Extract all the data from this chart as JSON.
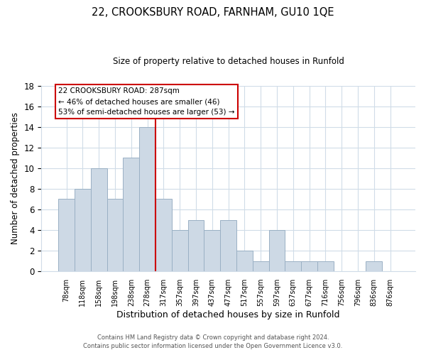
{
  "title": "22, CROOKSBURY ROAD, FARNHAM, GU10 1QE",
  "subtitle": "Size of property relative to detached houses in Runfold",
  "xlabel": "Distribution of detached houses by size in Runfold",
  "ylabel": "Number of detached properties",
  "bar_labels": [
    "78sqm",
    "118sqm",
    "158sqm",
    "198sqm",
    "238sqm",
    "278sqm",
    "317sqm",
    "357sqm",
    "397sqm",
    "437sqm",
    "477sqm",
    "517sqm",
    "557sqm",
    "597sqm",
    "637sqm",
    "677sqm",
    "716sqm",
    "756sqm",
    "796sqm",
    "836sqm",
    "876sqm"
  ],
  "bar_values": [
    7,
    8,
    10,
    7,
    11,
    14,
    7,
    4,
    5,
    4,
    5,
    2,
    1,
    4,
    1,
    1,
    1,
    0,
    0,
    1,
    0
  ],
  "bar_color": "#cdd9e5",
  "bar_edge_color": "#9ab0c4",
  "highlight_color": "#cc0000",
  "annotation_text": "22 CROOKSBURY ROAD: 287sqm\n← 46% of detached houses are smaller (46)\n53% of semi-detached houses are larger (53) →",
  "annotation_box_color": "#ffffff",
  "annotation_box_edge": "#cc0000",
  "ylim": [
    0,
    18
  ],
  "yticks": [
    0,
    2,
    4,
    6,
    8,
    10,
    12,
    14,
    16,
    18
  ],
  "footer_line1": "Contains HM Land Registry data © Crown copyright and database right 2024.",
  "footer_line2": "Contains public sector information licensed under the Open Government Licence v3.0.",
  "background_color": "#ffffff",
  "grid_color": "#d0dce8"
}
